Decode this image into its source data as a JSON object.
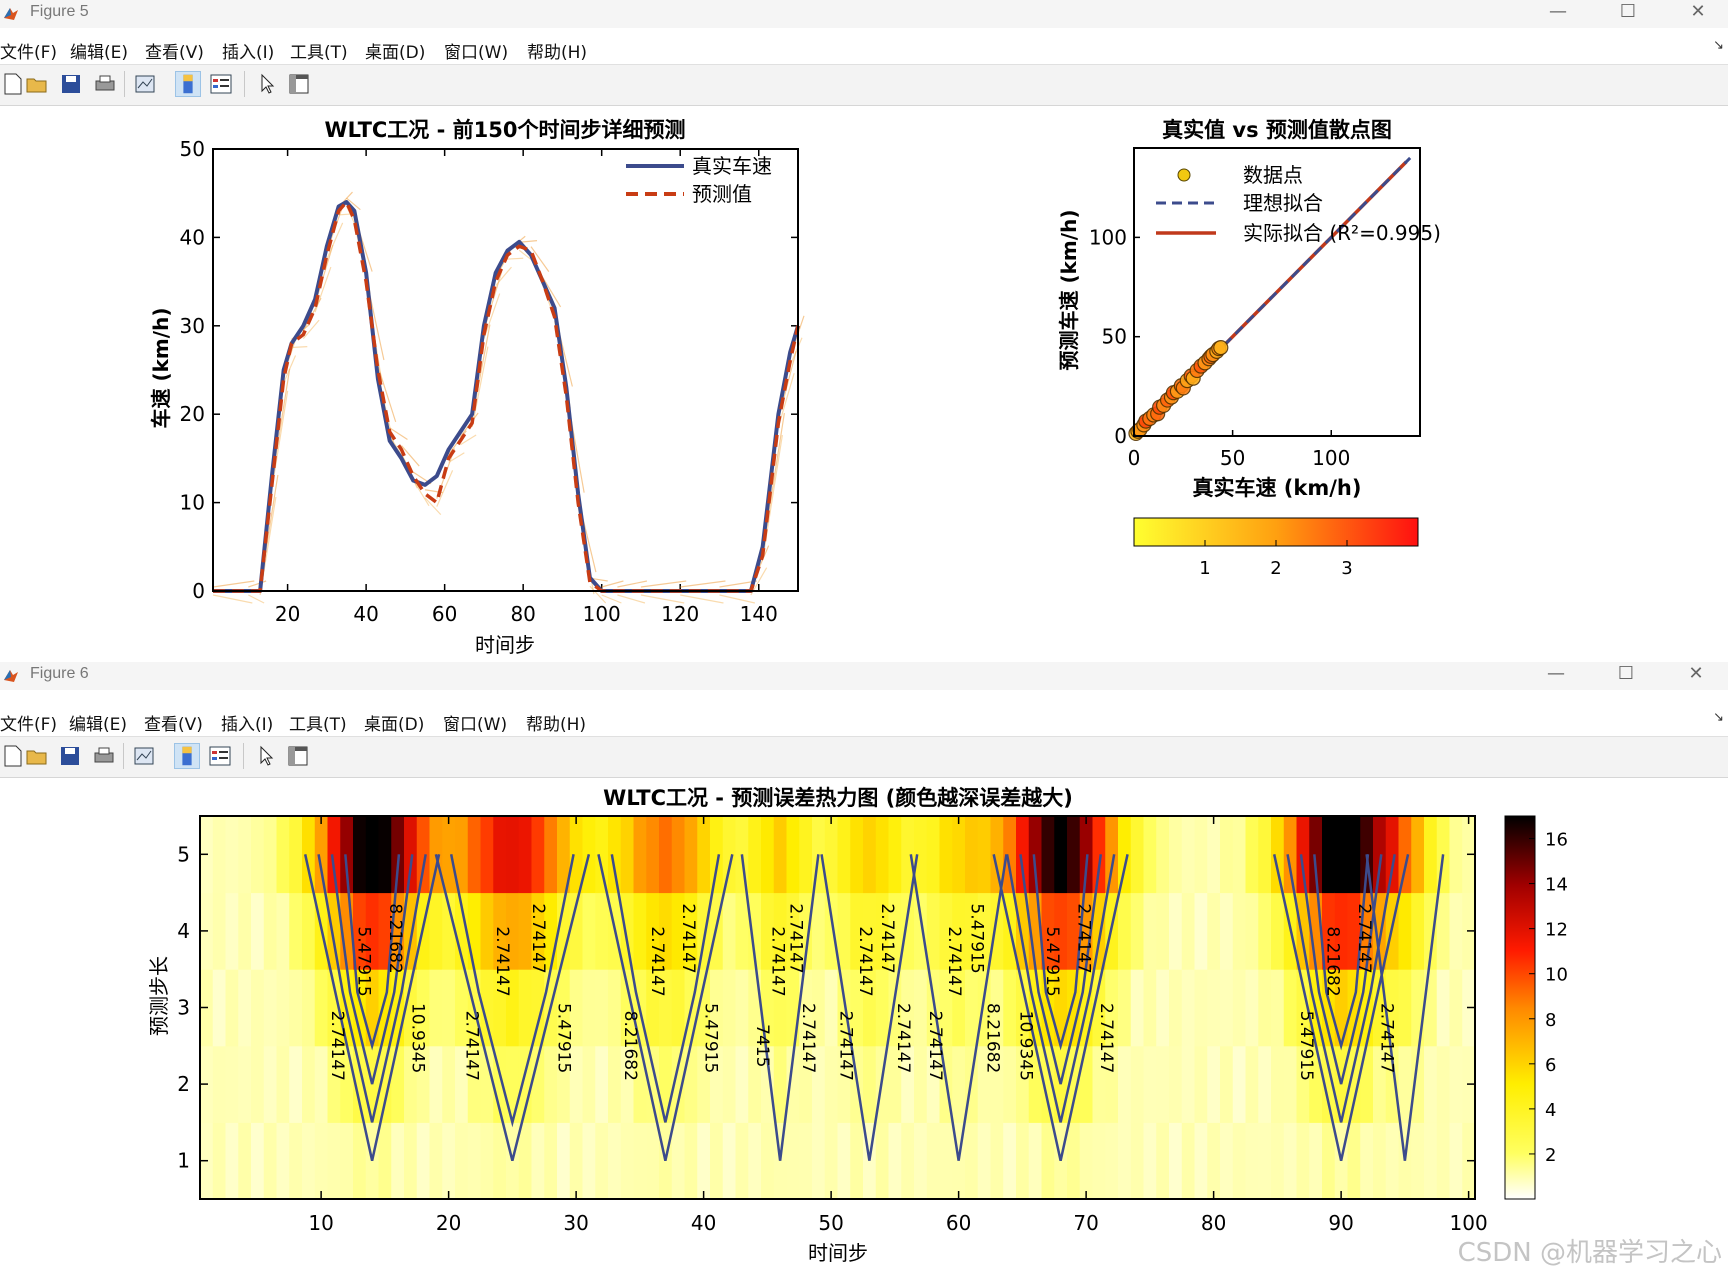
{
  "figures": [
    {
      "id": "fig5",
      "title": "Figure 5",
      "menu": [
        "文件(F)",
        "编辑(E)",
        "查看(V)",
        "插入(I)",
        "工具(T)",
        "桌面(D)",
        "窗口(W)",
        "帮助(H)"
      ]
    },
    {
      "id": "fig6",
      "title": "Figure 6",
      "menu": [
        "文件(F)",
        "编辑(E)",
        "查看(V)",
        "插入(I)",
        "工具(T)",
        "桌面(D)",
        "窗口(W)",
        "帮助(H)"
      ]
    }
  ],
  "toolbar_icons": [
    "new-file-icon",
    "open-folder-icon",
    "save-icon",
    "print-icon",
    "link-plot-icon",
    "colorbar-icon",
    "legend-icon",
    "pointer-icon",
    "property-inspector-icon"
  ],
  "watermark": "CSDN @机器学习之心",
  "colors": {
    "true_line": "#3c4b8c",
    "pred_line": "#c83c14",
    "fit_line": "#c0391b",
    "scatter_fill": "#f2c811"
  },
  "chart_data": [
    {
      "type": "line",
      "title": "WLTC工况 - 前150个时间步详细预测",
      "xlabel": "时间步",
      "ylabel": "车速 (km/h)",
      "xlim": [
        1,
        150
      ],
      "ylim": [
        0,
        50
      ],
      "xticks": [
        20,
        40,
        60,
        80,
        100,
        120,
        140
      ],
      "yticks": [
        0,
        10,
        20,
        30,
        40,
        50
      ],
      "legend_position": "top-right",
      "series": [
        {
          "name": "真实车速",
          "style": "solid",
          "x": [
            1,
            10,
            13,
            16,
            19,
            21,
            24,
            27,
            30,
            33,
            35,
            37,
            40,
            43,
            46,
            49,
            52,
            55,
            58,
            61,
            64,
            67,
            70,
            73,
            76,
            79,
            82,
            85,
            88,
            91,
            94,
            97,
            100,
            104,
            110,
            120,
            130,
            138,
            141,
            145,
            148,
            150
          ],
          "y": [
            0,
            0,
            0,
            13,
            25,
            28,
            30,
            33,
            39,
            43.5,
            44,
            43,
            36,
            24,
            17,
            15,
            12.5,
            12,
            13,
            16,
            18,
            20,
            30,
            36,
            38.5,
            39.5,
            38,
            35,
            32,
            23,
            11,
            1.5,
            0,
            0,
            0,
            0,
            0,
            0,
            5,
            20,
            27,
            30
          ]
        },
        {
          "name": "预测值",
          "style": "dashed",
          "x": [
            1,
            10,
            13,
            16,
            19,
            21,
            24,
            27,
            30,
            33,
            35,
            37,
            40,
            43,
            46,
            49,
            52,
            55,
            58,
            61,
            64,
            67,
            70,
            73,
            76,
            79,
            82,
            85,
            88,
            91,
            94,
            97,
            100,
            104,
            110,
            120,
            130,
            138,
            141,
            145,
            148,
            150
          ],
          "y": [
            0,
            0,
            0,
            12,
            24,
            28,
            29,
            32,
            38,
            43,
            44,
            42,
            35,
            25,
            18,
            16,
            13,
            11,
            10,
            15,
            17,
            19,
            29,
            35,
            38,
            39,
            38.5,
            35,
            31,
            22,
            10,
            1,
            0,
            0,
            0,
            0,
            0,
            0,
            4,
            19,
            26,
            30
          ]
        }
      ]
    },
    {
      "type": "scatter",
      "title": "真实值 vs 预测值散点图",
      "xlabel": "真实车速 (km/h)",
      "ylabel": "预测车速 (km/h)",
      "xlim": [
        0,
        145
      ],
      "ylim": [
        0,
        145
      ],
      "xticks": [
        0,
        50,
        100
      ],
      "yticks": [
        0,
        50,
        100
      ],
      "legend": [
        "数据点",
        "理想拟合",
        "实际拟合 (R²=0.995)"
      ],
      "legend_position": "top-left",
      "r_squared": 0.995,
      "fit_slope": 1.0,
      "fit_intercept": 0,
      "colorbar": {
        "orientation": "horizontal",
        "ticks": [
          1,
          2,
          3
        ],
        "range": [
          0,
          4
        ]
      },
      "points": [
        [
          1,
          1.3,
          1.2
        ],
        [
          2,
          2.4,
          1.5
        ],
        [
          3,
          3.2,
          1.8
        ],
        [
          5,
          5.6,
          2.0
        ],
        [
          6,
          7.5,
          3.2
        ],
        [
          8,
          8.8,
          2.4
        ],
        [
          10,
          10.6,
          2.1
        ],
        [
          12,
          11.2,
          2.6
        ],
        [
          13,
          14.5,
          3.1
        ],
        [
          15,
          15.4,
          2.0
        ],
        [
          17,
          18.1,
          2.7
        ],
        [
          19,
          19.6,
          1.9
        ],
        [
          20,
          21.8,
          3.0
        ],
        [
          22,
          22.5,
          1.7
        ],
        [
          24,
          25.3,
          2.5
        ],
        [
          25,
          24.2,
          2.2
        ],
        [
          27,
          27.9,
          1.6
        ],
        [
          29,
          30.2,
          2.8
        ],
        [
          30,
          29.1,
          1.4
        ],
        [
          32,
          33.0,
          2.3
        ],
        [
          34,
          35.2,
          2.9
        ],
        [
          36,
          36.8,
          1.8
        ],
        [
          38,
          38.9,
          2.2
        ],
        [
          39,
          40.1,
          2.6
        ],
        [
          40,
          41.0,
          1.9
        ],
        [
          42,
          42.6,
          1.5
        ],
        [
          43,
          44.0,
          2.0
        ],
        [
          44,
          44.5,
          1.3
        ]
      ]
    },
    {
      "type": "heatmap",
      "title": "WLTC工况 - 预测误差热力图 (颜色越深误差越大)",
      "xlabel": "时间步",
      "ylabel": "预测步长",
      "xlim": [
        0.5,
        100.5
      ],
      "ylim": [
        0.5,
        5.5
      ],
      "xticks": [
        10,
        20,
        30,
        40,
        50,
        60,
        70,
        80,
        90,
        100
      ],
      "yticks": [
        1,
        2,
        3,
        4,
        5
      ],
      "colorbar": {
        "ticks": [
          2,
          4,
          6,
          8,
          10,
          12,
          14,
          16
        ],
        "range": [
          0,
          17
        ]
      },
      "peaks": [
        {
          "center": 14,
          "width": 3.5,
          "amp": 16.5
        },
        {
          "center": 25,
          "width": 4,
          "amp": 11
        },
        {
          "center": 37,
          "width": 3.5,
          "amp": 8
        },
        {
          "center": 46,
          "width": 2,
          "amp": 5
        },
        {
          "center": 53,
          "width": 2.5,
          "amp": 5
        },
        {
          "center": 60,
          "width": 2.5,
          "amp": 4.5
        },
        {
          "center": 68,
          "width": 3.5,
          "amp": 16
        },
        {
          "center": 90,
          "width": 3.5,
          "amp": 17
        },
        {
          "center": 95,
          "width": 2,
          "amp": 4
        }
      ],
      "contour_levels": [
        2.74147,
        5.47915,
        8.21682,
        10.9345
      ],
      "contour_labels": [
        "2.74147",
        "5.47915",
        "8.21682",
        "10.9345",
        "2.74147",
        "2.74147",
        "2.74147",
        "5.47915",
        "8.21682",
        "2.74147",
        "2.74147",
        "5.47915",
        "7415",
        "2.74147",
        "2.74147",
        "2.74147",
        "2.74147",
        "2.74147",
        "2.74147",
        "2.74147",
        "2.74147",
        "2.74147",
        "5.47915",
        "8.21682",
        "10.9345",
        "5.47915",
        "2.74147",
        "2.74147",
        "5.47915",
        "8.21682",
        "2.74147",
        "2.74147"
      ]
    }
  ]
}
